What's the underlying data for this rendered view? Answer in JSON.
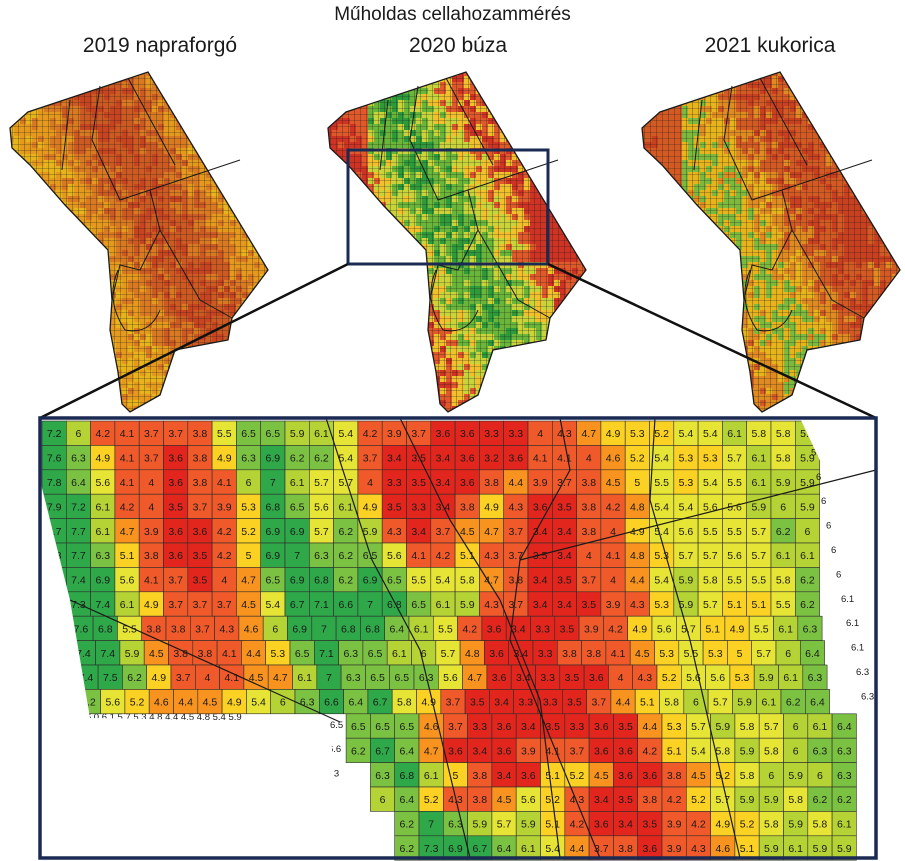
{
  "title": "Műholdas cellahozammérés",
  "maps": [
    {
      "label": "2019 napraforgó",
      "palette": [
        "#e8b41c",
        "#e59a1e",
        "#d97a22",
        "#cc5a22",
        "#c6441f"
      ],
      "green": 0.0
    },
    {
      "label": "2020 búza",
      "palette": [
        "#2e9a3a",
        "#69b63a",
        "#c9d33a",
        "#f1c02c",
        "#e0592a",
        "#cf3324"
      ],
      "green": 0.5
    },
    {
      "label": "2021 kukorica",
      "palette": [
        "#7cb93c",
        "#e8b41c",
        "#e08a22",
        "#d45a24",
        "#c8401f"
      ],
      "green": 0.12
    }
  ],
  "zoom": {
    "label_color_scale": [
      {
        "max": 3.6,
        "color": "#e3261d"
      },
      {
        "max": 4.3,
        "color": "#f0592a"
      },
      {
        "max": 4.8,
        "color": "#f7931e"
      },
      {
        "max": 5.3,
        "color": "#fbd123"
      },
      {
        "max": 5.8,
        "color": "#e6e435"
      },
      {
        "max": 6.1,
        "color": "#b5d335"
      },
      {
        "max": 6.5,
        "color": "#7cc242"
      },
      {
        "max": 9.9,
        "color": "#2fa84a"
      }
    ],
    "rows": [
      [
        7.2,
        6,
        4.2,
        4.1,
        3.7,
        3.7,
        3.8,
        5.5,
        6.5,
        6.5,
        5.9,
        6.1,
        5.4,
        4.2,
        3.9,
        3.7,
        3.6,
        3.6,
        3.3,
        3.3,
        4,
        4.3,
        4.7,
        4.9,
        5.3,
        5.2,
        5.4,
        5.4,
        6.1,
        5.8,
        5.8,
        5.9
      ],
      [
        7.6,
        6.3,
        4.9,
        4.1,
        3.7,
        3.6,
        3.8,
        4.9,
        6.3,
        6.9,
        6.2,
        6.2,
        5.4,
        3.7,
        3.4,
        3.5,
        3.4,
        3.6,
        3.2,
        3.6,
        4.1,
        4.1,
        4,
        4.6,
        5.2,
        5.4,
        5.3,
        5.3,
        5.7,
        6.1,
        5.8,
        5.9
      ],
      [
        7.8,
        6.4,
        5.6,
        4.1,
        4,
        3.6,
        3.8,
        4.1,
        6,
        7,
        6.1,
        5.7,
        5.7,
        4,
        3.3,
        3.5,
        3.4,
        3.6,
        3.8,
        4.4,
        3.9,
        3.7,
        3.8,
        4.5,
        5,
        5.5,
        5.3,
        5.4,
        5.5,
        6.1,
        5.9,
        5.9
      ],
      [
        7.9,
        7.2,
        6.1,
        4.2,
        4,
        3.5,
        3.7,
        3.9,
        5.3,
        6.8,
        6.5,
        5.6,
        6.1,
        4.9,
        3.5,
        3.3,
        3.4,
        3.8,
        4.9,
        4.3,
        3.6,
        3.5,
        3.8,
        4.2,
        4.8,
        5.4,
        5.4,
        5.6,
        5.6,
        5.9,
        6,
        5.9
      ],
      [
        7.7,
        7.7,
        6.1,
        4.7,
        3.9,
        3.6,
        3.6,
        4.2,
        5.2,
        6.9,
        6.9,
        5.7,
        6.2,
        5.9,
        4.3,
        3.4,
        3.7,
        4.5,
        4.7,
        3.7,
        3.4,
        3.4,
        3.8,
        4,
        4.9,
        5.4,
        5.6,
        5.5,
        5.5,
        5.7,
        6.2,
        6
      ],
      [
        6.8,
        7.7,
        6.3,
        5.1,
        3.8,
        3.6,
        3.5,
        4.2,
        5,
        6.9,
        7,
        6.3,
        6.2,
        6.5,
        5.6,
        4.1,
        4.2,
        5.1,
        4.3,
        3.7,
        3.5,
        3.4,
        4,
        4.1,
        4.8,
        5.3,
        5.7,
        5.7,
        5.6,
        5.7,
        6.1,
        6.1
      ],
      [
        6.9,
        7.4,
        6.9,
        5.6,
        4.1,
        3.7,
        3.5,
        4,
        4.7,
        6.5,
        6.9,
        6.8,
        6.2,
        6.9,
        6.5,
        5.5,
        5.4,
        5.8,
        4.7,
        3.8,
        3.4,
        3.5,
        3.7,
        4,
        4.4,
        5.4,
        5.9,
        5.8,
        5.5,
        5.5,
        5.8,
        6.2
      ],
      [
        7,
        7.3,
        7.4,
        6.1,
        4.9,
        3.7,
        3.7,
        3.7,
        4.5,
        5.4,
        6.7,
        7.1,
        6.6,
        7,
        6.8,
        6.5,
        6.1,
        5.9,
        4.3,
        3.7,
        3.4,
        3.4,
        3.5,
        3.9,
        4.3,
        5.3,
        5.9,
        5.7,
        5.1,
        5.1,
        5.5,
        6.2
      ],
      [
        6.7,
        7.6,
        6.8,
        5.5,
        3.8,
        3.8,
        3.7,
        4.3,
        4.6,
        6,
        6.9,
        7,
        6.8,
        6.8,
        6.4,
        6.1,
        5.5,
        4.2,
        3.6,
        3.4,
        3.3,
        3.5,
        3.9,
        4.2,
        4.9,
        5.6,
        5.7,
        5.1,
        4.9,
        5.5,
        6.1,
        6.3
      ],
      [
        6.8,
        7.4,
        7.4,
        5.9,
        4.5,
        3.8,
        3.8,
        4.1,
        4.4,
        5.3,
        6.5,
        7.1,
        6.3,
        6.5,
        6.1,
        6,
        5.7,
        4.8,
        3.6,
        3.4,
        3.3,
        3.8,
        3.8,
        4.1,
        4.5,
        5.3,
        5.5,
        5.3,
        5,
        5.7,
        6,
        6.4
      ],
      [
        7,
        7.4,
        7.5,
        6.2,
        4.9,
        3.7,
        4,
        4.1,
        4.5,
        4.7,
        6.1,
        7,
        6.3,
        6.5,
        6.5,
        6.3,
        5.6,
        4.7,
        3.6,
        3.4,
        3.3,
        3.5,
        3.6,
        4,
        4.3,
        5.2,
        5.6,
        5.6,
        5.3,
        5.9,
        6.1,
        6.3
      ],
      [
        6.6,
        6.2,
        5.6,
        5.2,
        4.6,
        4.4,
        4.5,
        4.9,
        5.4,
        6,
        6.3,
        6.6,
        6.4,
        6.7,
        5.8,
        4.9,
        3.7,
        3.5,
        3.4,
        3.3,
        3.3,
        3.5,
        3.7,
        4.4,
        5.1,
        5.8,
        6,
        5.7,
        5.9,
        6.1,
        6.2,
        6.4
      ],
      [
        6.5,
        6.5,
        6.5,
        4.6,
        3.7,
        3.3,
        3.6,
        3.4,
        3.5,
        3.3,
        3.6,
        3.5,
        4.4,
        5.3,
        5.7,
        5.9,
        5.8,
        5.7,
        6,
        6.1,
        6.4
      ],
      [
        6.2,
        6.7,
        6.4,
        4.7,
        3.6,
        3.4,
        3.6,
        3.9,
        4.1,
        3.7,
        3.6,
        3.6,
        4.2,
        5.1,
        5.4,
        5.8,
        5.9,
        5.8,
        6,
        6.3,
        6.3
      ],
      [
        6.3,
        6.8,
        6.1,
        5,
        3.8,
        3.4,
        3.6,
        5.1,
        5.2,
        4.5,
        3.6,
        3.6,
        3.8,
        4.5,
        5.2,
        5.8,
        6,
        5.9,
        6,
        6.3,
        6.2
      ],
      [
        6,
        6.4,
        5.2,
        4.3,
        3.8,
        4.5,
        5.6,
        5.2,
        4.3,
        3.4,
        3.5,
        3.8,
        4.2,
        5.2,
        5.7,
        5.9,
        5.9,
        5.8,
        6.2,
        6.2
      ],
      [
        6.2,
        7,
        6.3,
        5.9,
        5.7,
        5.9,
        5.1,
        4.2,
        3.6,
        3.4,
        3.5,
        3.9,
        4.2,
        4.9,
        5.2,
        5.8,
        5.9,
        5.8,
        6.1,
        6.3
      ],
      [
        6.2,
        7.3,
        6.9,
        6.7,
        6.4,
        6.1,
        5.4,
        4.4,
        3.7,
        3.8,
        3.6,
        3.9,
        4.3,
        4.6,
        5.1,
        5.9,
        6.1,
        5.9,
        5.9,
        6.1
      ]
    ],
    "edge_right": [
      "5.9",
      "5.9",
      "6",
      "6",
      "6",
      "6",
      "6",
      "6.1",
      "6.1",
      "6.1",
      "6.3",
      "6.3"
    ],
    "edge_left": [
      "",
      "",
      "",
      "",
      "",
      "",
      "",
      "",
      "7.1",
      "7.2",
      "7.3",
      "7.1 6.0 6.1 5.7 5.3 4.8 4.4 4.5 4.8 5.4 5.9",
      "6.5",
      "6.6",
      "6.3",
      "",
      "6.4",
      "6.5"
    ]
  }
}
